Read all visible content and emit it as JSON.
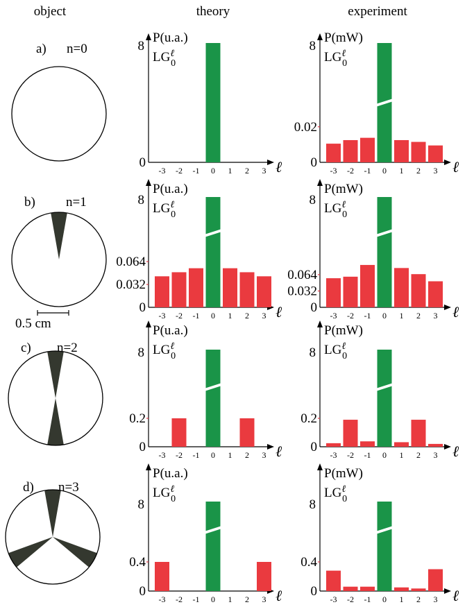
{
  "column_headers": {
    "object": "object",
    "theory": "theory",
    "experiment": "experiment"
  },
  "rows": [
    {
      "letter": "a)",
      "n": "n=0",
      "sectors": 0,
      "scale_bar": ""
    },
    {
      "letter": "b)",
      "n": "n=1",
      "sectors": 1,
      "scale_bar": "0.5 cm"
    },
    {
      "letter": "c)",
      "n": "n=2",
      "sectors": 2,
      "scale_bar": ""
    },
    {
      "letter": "d)",
      "n": "n=3",
      "sectors": 3,
      "scale_bar": ""
    }
  ],
  "mode_label": {
    "base": "LG",
    "sup": "ℓ",
    "sub": "0"
  },
  "x_axis_letter": "ℓ",
  "colors": {
    "center": "#1a9448",
    "side": "#ea3a3f",
    "sector": "#34382f",
    "center_tick": "#1a9448",
    "side_tick": "#e23b4a"
  },
  "chart_data": [
    {
      "type": "bar",
      "row": "a",
      "column": "theory",
      "ylabel": "P(u.a.)",
      "xlabel": "ℓ",
      "categories": [
        "-3",
        "-2",
        "-1",
        "0",
        "1",
        "2",
        "3"
      ],
      "values": [
        0,
        0,
        0,
        8,
        0,
        0,
        0
      ],
      "broken_axis": false,
      "center_tick": "8",
      "y_ticks": [],
      "zero_tick": "0"
    },
    {
      "type": "bar",
      "row": "a",
      "column": "experiment",
      "ylabel": "P(mW)",
      "xlabel": "ℓ",
      "categories": [
        "-3",
        "-2",
        "-1",
        "0",
        "1",
        "2",
        "3"
      ],
      "values": [
        0.0105,
        0.0125,
        0.0138,
        8,
        0.0125,
        0.0115,
        0.0095
      ],
      "broken_axis": true,
      "ylim_lower": [
        0,
        0.032
      ],
      "center_tick": "8",
      "y_ticks": [
        "0.02"
      ],
      "zero_tick": "0"
    },
    {
      "type": "bar",
      "row": "b",
      "column": "theory",
      "ylabel": "P(u.a.)",
      "xlabel": "ℓ",
      "categories": [
        "-3",
        "-2",
        "-1",
        "0",
        "1",
        "2",
        "3"
      ],
      "values": [
        0.0434,
        0.0491,
        0.0547,
        8,
        0.0547,
        0.0491,
        0.0434
      ],
      "broken_axis": true,
      "ylim_lower": [
        0,
        0.1
      ],
      "center_tick": "8",
      "y_ticks": [
        "0.032",
        "0.064"
      ],
      "zero_tick": "0"
    },
    {
      "type": "bar",
      "row": "b",
      "column": "experiment",
      "ylabel": "P(mW)",
      "xlabel": "ℓ",
      "categories": [
        "-3",
        "-2",
        "-1",
        "0",
        "1",
        "2",
        "3"
      ],
      "values": [
        0.057,
        0.06,
        0.083,
        8,
        0.077,
        0.065,
        0.051
      ],
      "broken_axis": true,
      "ylim_lower": [
        0,
        0.14
      ],
      "center_tick": "8",
      "y_ticks": [
        "0.032",
        "0.064"
      ],
      "zero_tick": "0"
    },
    {
      "type": "bar",
      "row": "c",
      "column": "theory",
      "ylabel": "P(u.a.)",
      "xlabel": "ℓ",
      "categories": [
        "-3",
        "-2",
        "-1",
        "0",
        "1",
        "2",
        "3"
      ],
      "values": [
        0,
        0.2,
        0,
        8,
        0,
        0.2,
        0
      ],
      "broken_axis": true,
      "ylim_lower": [
        0,
        0.4
      ],
      "center_tick": "8",
      "y_ticks": [
        "0.2"
      ],
      "zero_tick": "0"
    },
    {
      "type": "bar",
      "row": "c",
      "column": "experiment",
      "ylabel": "P(mW)",
      "xlabel": "ℓ",
      "categories": [
        "-3",
        "-2",
        "-1",
        "0",
        "1",
        "2",
        "3"
      ],
      "values": [
        0.025,
        0.19,
        0.038,
        8,
        0.032,
        0.19,
        0.02
      ],
      "broken_axis": true,
      "ylim_lower": [
        0,
        0.4
      ],
      "center_tick": "8",
      "y_ticks": [
        "0.2"
      ],
      "zero_tick": "0"
    },
    {
      "type": "bar",
      "row": "d",
      "column": "theory",
      "ylabel": "P(u.a.)",
      "xlabel": "ℓ",
      "categories": [
        "-3",
        "-2",
        "-1",
        "0",
        "1",
        "2",
        "3"
      ],
      "values": [
        0.4,
        0,
        0,
        8,
        0,
        0,
        0.4
      ],
      "broken_axis": true,
      "ylim_lower": [
        0,
        0.8
      ],
      "center_tick": "8",
      "y_ticks": [
        "0.4"
      ],
      "zero_tick": "0"
    },
    {
      "type": "bar",
      "row": "d",
      "column": "experiment",
      "ylabel": "P(mW)",
      "xlabel": "ℓ",
      "categories": [
        "-3",
        "-2",
        "-1",
        "0",
        "1",
        "2",
        "3"
      ],
      "values": [
        0.28,
        0.06,
        0.06,
        8,
        0.05,
        0.035,
        0.3
      ],
      "broken_axis": true,
      "ylim_lower": [
        0,
        0.8
      ],
      "center_tick": "8",
      "y_ticks": [
        "0.4"
      ],
      "zero_tick": "0"
    }
  ]
}
